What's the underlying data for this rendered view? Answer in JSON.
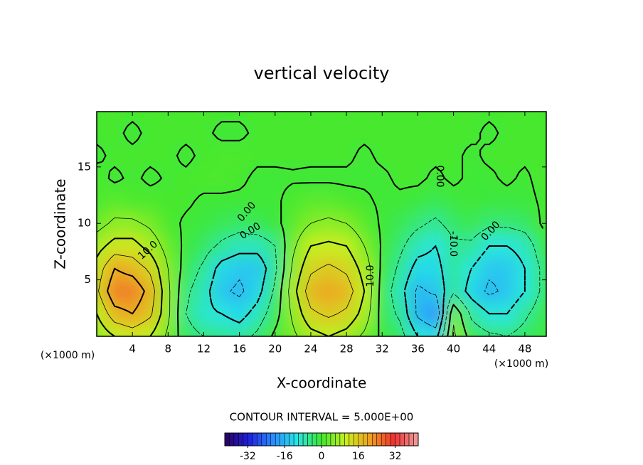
{
  "chart_data": {
    "type": "contour",
    "title": "vertical velocity",
    "x_label": "X-coordinate",
    "y_label": "Z-coordinate",
    "y_unit_label": "(×1000 m)",
    "x_unit_label": "(×1000 m)",
    "x": [
      0,
      2,
      4,
      6,
      8,
      10,
      12,
      14,
      16,
      18,
      20,
      22,
      24,
      26,
      28,
      30,
      32,
      34,
      36,
      38,
      40,
      42,
      44,
      46,
      48,
      50
    ],
    "z": [
      0,
      2,
      4,
      6,
      8,
      10,
      12,
      14,
      16,
      18,
      20
    ],
    "values": [
      [
        6,
        10,
        12,
        10,
        4,
        -3,
        -5,
        -6,
        -7,
        -4,
        1,
        4,
        8,
        10,
        8,
        4,
        -1,
        -3,
        -10,
        -12,
        6,
        -2,
        -4,
        -5,
        -3,
        -1
      ],
      [
        10,
        18,
        20,
        16,
        6,
        -5,
        -9,
        -10,
        -12,
        -8,
        -2,
        6,
        14,
        16,
        14,
        8,
        -2,
        -6,
        -16,
        -20,
        4,
        -6,
        -10,
        -10,
        -6,
        -2
      ],
      [
        14,
        24,
        24,
        18,
        6,
        -4,
        -8,
        -14,
        -16,
        -12,
        -4,
        8,
        18,
        20,
        18,
        10,
        -2,
        -8,
        -16,
        -14,
        -6,
        -12,
        -16,
        -14,
        -10,
        -4
      ],
      [
        12,
        20,
        18,
        14,
        5,
        -2,
        -6,
        -12,
        -14,
        -14,
        -6,
        6,
        14,
        16,
        14,
        8,
        -1,
        -6,
        -12,
        -12,
        -6,
        -10,
        -14,
        -14,
        -10,
        -4
      ],
      [
        8,
        12,
        12,
        8,
        3,
        -1,
        -3,
        -6,
        -8,
        -8,
        -5,
        4,
        10,
        11,
        10,
        5,
        -0.5,
        -4,
        -8,
        -10,
        -6,
        -6,
        -10,
        -10,
        -8,
        -2
      ],
      [
        3,
        6,
        6,
        4,
        1,
        -0.5,
        -1,
        -2,
        -3,
        -2,
        -1,
        2,
        5,
        6,
        5,
        2,
        -0.5,
        -2,
        -4,
        -6,
        -3,
        -2,
        -4,
        -4,
        -3,
        0.5
      ],
      [
        1,
        2,
        1,
        1,
        0.5,
        0.5,
        -0.5,
        -0.5,
        -0.5,
        -0.5,
        -0.5,
        1,
        2,
        2,
        1,
        0.5,
        -0.5,
        -0.5,
        -1,
        -2,
        -1,
        -0.5,
        -1,
        -1,
        -1,
        0.5
      ],
      [
        1,
        -0.5,
        0.5,
        -0.5,
        0.3,
        0.5,
        1,
        1,
        0.5,
        -0.5,
        -0.5,
        -0.3,
        -0.5,
        -0.5,
        -0.5,
        -0.5,
        -0.5,
        0.5,
        0.5,
        -0.5,
        0.5,
        -0.5,
        -0.5,
        0.5,
        -0.5,
        1
      ],
      [
        -0.5,
        0.5,
        0.5,
        0.5,
        0.5,
        -0.5,
        0.5,
        1,
        1,
        0.5,
        0.5,
        0.5,
        0.5,
        0.5,
        0.5,
        -0.5,
        0.5,
        0.5,
        0.5,
        0.5,
        0.5,
        -0.5,
        0.5,
        0.5,
        0.5,
        0.5
      ],
      [
        0.5,
        0.5,
        -0.5,
        0.5,
        0.5,
        0.5,
        0.5,
        -0.5,
        -0.5,
        0.5,
        0.5,
        0.5,
        0.5,
        0.5,
        0.5,
        0.5,
        0.5,
        0.5,
        0.5,
        0.5,
        0.5,
        0.5,
        -0.5,
        0.5,
        0.5,
        0.5
      ],
      [
        0.5,
        0.5,
        0.5,
        0.5,
        0.5,
        0.5,
        0.5,
        0.5,
        0.5,
        0.5,
        0.5,
        0.5,
        0.5,
        0.5,
        0.5,
        0.5,
        0.5,
        0.5,
        0.5,
        0.5,
        0.5,
        0.5,
        0.5,
        0.5,
        0.5,
        0.5
      ]
    ],
    "xlim": [
      0,
      50.4
    ],
    "ylim": [
      0,
      19.9
    ],
    "xticks": [
      4,
      8,
      12,
      16,
      20,
      24,
      28,
      32,
      36,
      40,
      44,
      48
    ],
    "yticks": [
      5,
      10,
      15
    ],
    "levels": [
      -20,
      -15,
      -10,
      -5,
      0,
      5,
      10,
      15,
      20
    ],
    "contour_labels": [
      {
        "value": 0,
        "label": "0.00"
      },
      {
        "value": 0,
        "label": "0.00"
      },
      {
        "value": 10,
        "label": "10.0"
      },
      {
        "value": 10,
        "label": "10.0"
      },
      {
        "value": -10,
        "label": "-10.0"
      },
      {
        "value": 0,
        "label": "0.00"
      },
      {
        "value": 0,
        "label": "0.00"
      }
    ],
    "contour_interval_label": "CONTOUR INTERVAL = 5.000E+00",
    "colorbar": {
      "zlim": [
        -42,
        42
      ],
      "ticks": [
        -32,
        -16,
        0,
        16,
        32
      ],
      "colors": [
        "#2a0060",
        "#2020e0",
        "#2a8cff",
        "#28e6e6",
        "#40e830",
        "#c8f020",
        "#f0a020",
        "#f03030",
        "#f0a0a0"
      ]
    }
  }
}
